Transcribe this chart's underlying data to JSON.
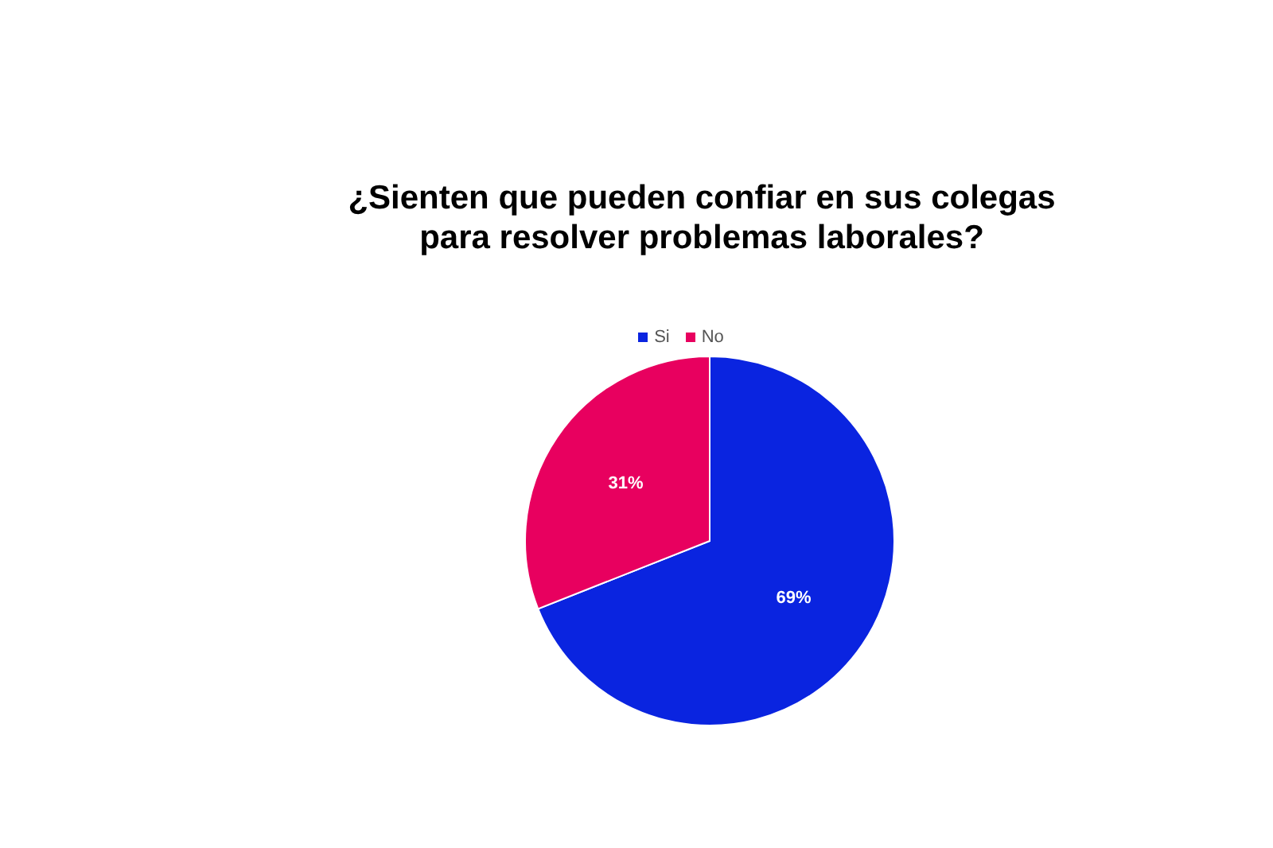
{
  "chart_data": {
    "type": "pie",
    "title": "¿Sienten que pueden confiar en sus colegas\npara resolver problemas laborales?",
    "categories": [
      "Si",
      "No"
    ],
    "values": [
      69,
      31
    ],
    "colors": [
      "#0a24e0",
      "#e8005f"
    ],
    "value_labels": [
      "69%",
      "31%"
    ],
    "legend": "top"
  }
}
